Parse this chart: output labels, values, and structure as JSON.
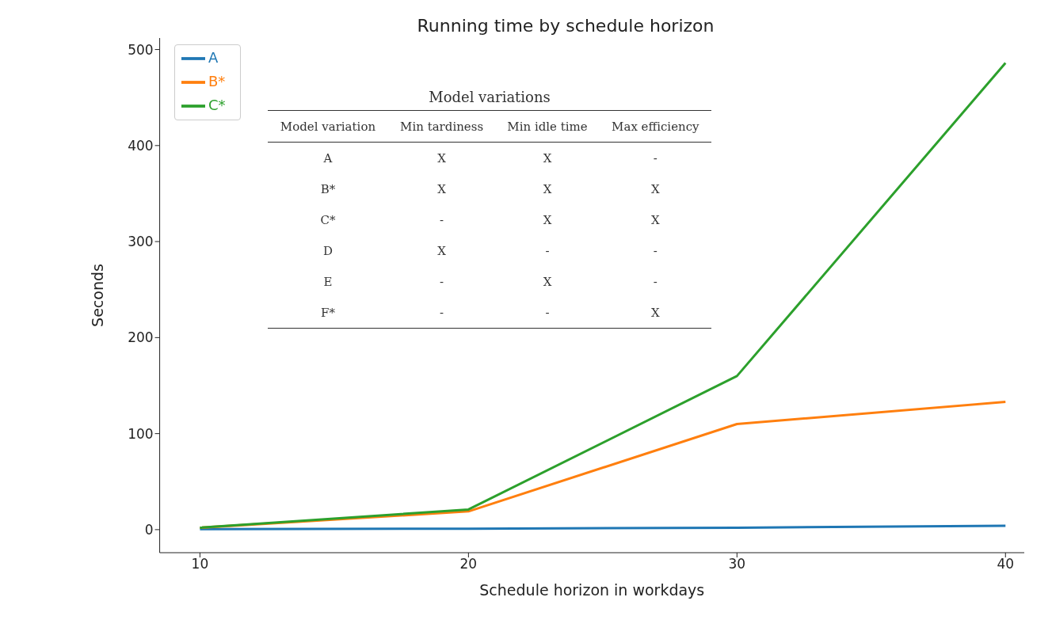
{
  "chart_data": [
    {
      "type": "line",
      "title": "Running time by schedule horizon",
      "xlabel": "Schedule horizon in workdays",
      "ylabel": "Seconds",
      "x": [
        10,
        20,
        30,
        40
      ],
      "series": [
        {
          "name": "A",
          "color": "#1f77b4",
          "values": [
            0.5,
            1,
            2,
            4
          ]
        },
        {
          "name": "B*",
          "color": "#ff7f0e",
          "values": [
            2,
            19,
            110,
            133
          ]
        },
        {
          "name": "C*",
          "color": "#2ca02c",
          "values": [
            2,
            21,
            160,
            486
          ]
        }
      ],
      "xlim": [
        8.5,
        40.7
      ],
      "xticks": [
        10,
        20,
        30,
        40
      ],
      "ylim": [
        -24,
        512
      ],
      "yticks": [
        0,
        100,
        200,
        300,
        400,
        500
      ],
      "grid": false,
      "legend": "top left",
      "marker": "none",
      "line_style": "solid"
    },
    {
      "type": "other",
      "title": "Model variations",
      "categories": [
        "Model variation",
        "Min tardiness",
        "Min idle time",
        "Max efficiency"
      ],
      "cell_labels": [
        [
          "A",
          "X",
          "X",
          "-"
        ],
        [
          "B*",
          "X",
          "X",
          "X"
        ],
        [
          "C*",
          "-",
          "X",
          "X"
        ],
        [
          "D",
          "X",
          "-",
          "-"
        ],
        [
          "E",
          "-",
          "X",
          "-"
        ],
        [
          "F*",
          "-",
          "-",
          "X"
        ]
      ]
    }
  ]
}
